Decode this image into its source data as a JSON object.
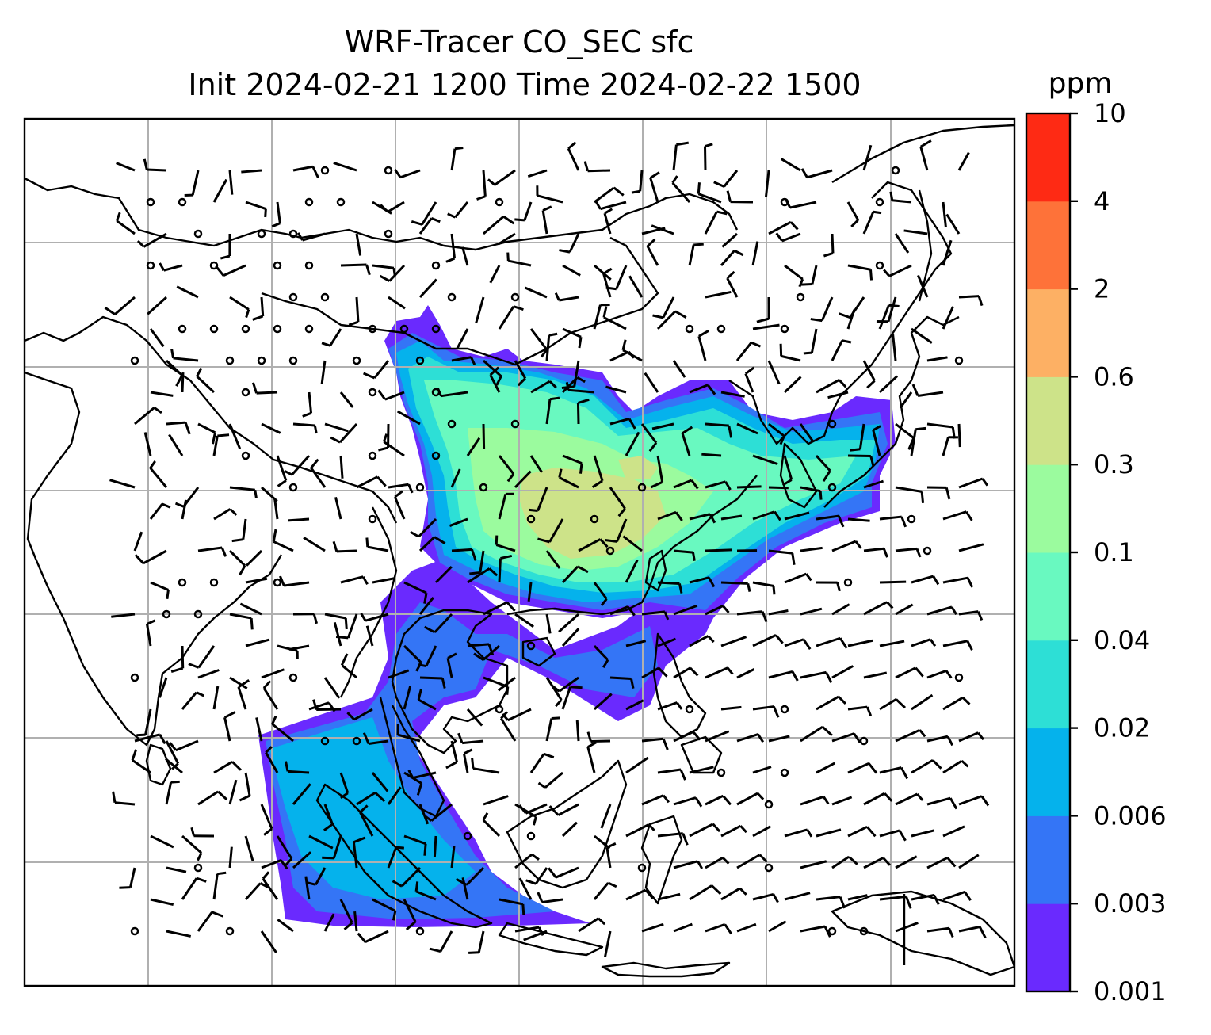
{
  "title_line1": "WRF-Tracer CO_SEC sfc",
  "title_line2": "Init 2024-02-21 1200 Time 2024-02-22 1500",
  "colorbar": {
    "unit": "ppm",
    "levels": [
      "0.001",
      "0.003",
      "0.006",
      "0.02",
      "0.04",
      "0.1",
      "0.3",
      "0.6",
      "2",
      "4",
      "10"
    ],
    "colors": [
      "#6a2afe",
      "#3475f6",
      "#05b2ec",
      "#2ddfd6",
      "#69f9c0",
      "#9bfb9e",
      "#cde389",
      "#fdb064",
      "#fe7239",
      "#fe2a14"
    ]
  },
  "map": {
    "gridlines": true,
    "field_colors": {
      "faint": "#6a2afe",
      "low": "#3475f6",
      "mid_low": "#05b2ec",
      "mid": "#2ddfd6",
      "mid_high": "#69f9c0",
      "high": "#9bfb9e",
      "peak": "#cde389"
    },
    "wind_barbs": "black",
    "coastline_color": "#000000"
  }
}
